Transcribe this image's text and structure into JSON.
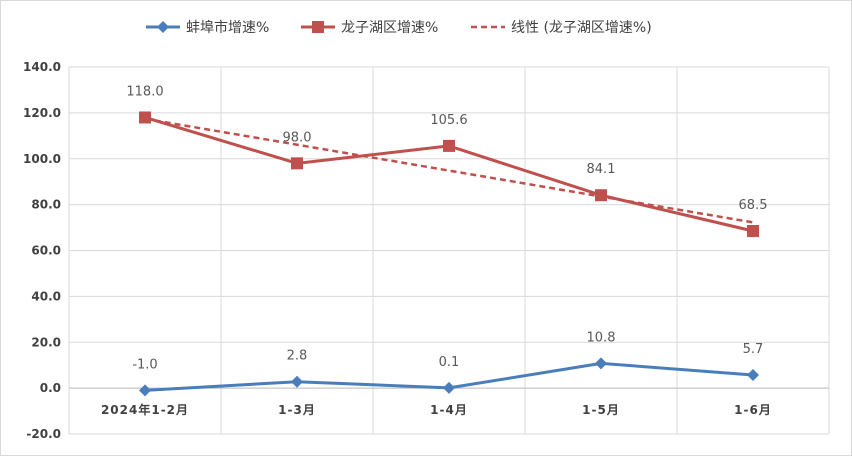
{
  "chart_data": {
    "type": "line",
    "categories": [
      "2024年1-2月",
      "1-3月",
      "1-4月",
      "1-5月",
      "1-6月"
    ],
    "series": [
      {
        "name": "蚌埠市增速%",
        "values": [
          -1.0,
          2.8,
          0.1,
          10.8,
          5.7
        ],
        "color": "#4a7ebb",
        "marker": "diamond",
        "labels": [
          "-1.0",
          "2.8",
          "0.1",
          "10.8",
          "5.7"
        ]
      },
      {
        "name": "龙子湖区增速%",
        "values": [
          118.0,
          98.0,
          105.6,
          84.1,
          68.5
        ],
        "color": "#c0504d",
        "marker": "square",
        "labels": [
          "118.0",
          "98.0",
          "105.6",
          "84.1",
          "68.5"
        ]
      }
    ],
    "trendline": {
      "name": "线性 (龙子湖区增速%)",
      "of_series": "龙子湖区增速%",
      "type": "linear",
      "color": "#c0504d",
      "dashed": true
    },
    "ylim": [
      -20,
      140
    ],
    "yticks": [
      "-20.0",
      "0.0",
      "20.0",
      "40.0",
      "60.0",
      "80.0",
      "100.0",
      "120.0",
      "140.0"
    ],
    "grid": true,
    "legend_position": "top",
    "title": "",
    "xlabel": "",
    "ylabel": ""
  }
}
